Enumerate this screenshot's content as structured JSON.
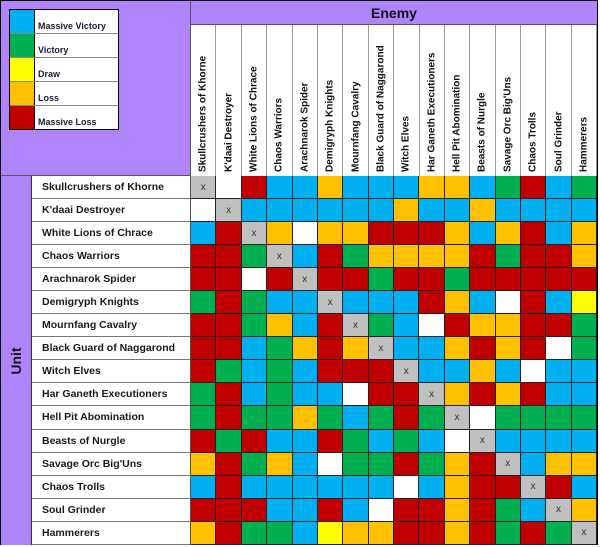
{
  "legend": [
    {
      "key": "MV",
      "label": "Massive Victory",
      "color": "#00b0f0"
    },
    {
      "key": "V",
      "label": "Victory",
      "color": "#00b050"
    },
    {
      "key": "D",
      "label": "Draw",
      "color": "#ffff00"
    },
    {
      "key": "L",
      "label": "Loss",
      "color": "#ffc000"
    },
    {
      "key": "ML",
      "label": "Massive Loss",
      "color": "#c00000"
    }
  ],
  "colors": {
    "MV": "#00b0f0",
    "V": "#00b050",
    "D": "#ffff00",
    "L": "#ffc000",
    "ML": "#c00000",
    "N": "#ffffff",
    "X": "#c0c0c0",
    "header": "#b183fc"
  },
  "header": {
    "enemy_label": "Enemy",
    "unit_label": "Unit"
  },
  "chart_data": {
    "type": "heatmap",
    "title": "",
    "xlabel": "Enemy",
    "ylabel": "Unit",
    "legend_position": "top-left",
    "cell_codes": {
      "MV": "Massive Victory",
      "V": "Victory",
      "D": "Draw",
      "L": "Loss",
      "ML": "Massive Loss",
      "N": "No data (blank)",
      "X": "Self (x)"
    },
    "columns": [
      "Skullcrushers of Khorne",
      "K'daai Destroyer",
      "White Lions of Chrace",
      "Chaos Warriors",
      "Arachnarok Spider",
      "Demigryph Knights",
      "Mournfang Cavalry",
      "Black Guard of Naggarond",
      "Witch Elves",
      "Har Ganeth Executioners",
      "Hell Pit Abomination",
      "Beasts of Nurgle",
      "Savage Orc Big'Uns",
      "Chaos Trolls",
      "Soul Grinder",
      "Hammerers"
    ],
    "rows": [
      "Skullcrushers of Khorne",
      "K'daai Destroyer",
      "White Lions of Chrace",
      "Chaos Warriors",
      "Arachnarok Spider",
      "Demigryph Knights",
      "Mournfang Cavalry",
      "Black Guard of Naggarond",
      "Witch Elves",
      "Har Ganeth Executioners",
      "Hell Pit Abomination",
      "Beasts of Nurgle",
      "Savage Orc Big'Uns",
      "Chaos Trolls",
      "Soul Grinder",
      "Hammerers"
    ],
    "values": [
      [
        "X",
        "N",
        "ML",
        "MV",
        "MV",
        "L",
        "MV",
        "MV",
        "MV",
        "L",
        "L",
        "MV",
        "V",
        "ML",
        "MV",
        "V"
      ],
      [
        "N",
        "X",
        "MV",
        "MV",
        "MV",
        "MV",
        "MV",
        "MV",
        "L",
        "MV",
        "MV",
        "L",
        "MV",
        "MV",
        "MV",
        "MV"
      ],
      [
        "MV",
        "ML",
        "X",
        "L",
        "N",
        "L",
        "L",
        "ML",
        "ML",
        "ML",
        "L",
        "MV",
        "L",
        "ML",
        "MV",
        "L"
      ],
      [
        "ML",
        "ML",
        "V",
        "X",
        "MV",
        "ML",
        "V",
        "L",
        "L",
        "L",
        "L",
        "ML",
        "V",
        "ML",
        "ML",
        "L"
      ],
      [
        "ML",
        "ML",
        "N",
        "ML",
        "X",
        "ML",
        "ML",
        "V",
        "ML",
        "ML",
        "V",
        "ML",
        "ML",
        "ML",
        "ML",
        "ML"
      ],
      [
        "V",
        "ML",
        "V",
        "MV",
        "MV",
        "X",
        "MV",
        "MV",
        "MV",
        "ML",
        "L",
        "MV",
        "N",
        "ML",
        "MV",
        "D"
      ],
      [
        "ML",
        "ML",
        "V",
        "L",
        "MV",
        "ML",
        "X",
        "V",
        "MV",
        "N",
        "ML",
        "L",
        "L",
        "ML",
        "ML",
        "V"
      ],
      [
        "ML",
        "ML",
        "MV",
        "V",
        "L",
        "ML",
        "L",
        "X",
        "MV",
        "MV",
        "L",
        "ML",
        "L",
        "ML",
        "N",
        "V"
      ],
      [
        "ML",
        "V",
        "MV",
        "V",
        "MV",
        "ML",
        "ML",
        "ML",
        "X",
        "MV",
        "MV",
        "L",
        "MV",
        "N",
        "MV",
        "MV"
      ],
      [
        "V",
        "ML",
        "MV",
        "V",
        "MV",
        "MV",
        "N",
        "ML",
        "ML",
        "X",
        "L",
        "ML",
        "L",
        "ML",
        "MV",
        "MV"
      ],
      [
        "V",
        "ML",
        "V",
        "V",
        "L",
        "V",
        "MV",
        "V",
        "ML",
        "V",
        "X",
        "N",
        "V",
        "V",
        "V",
        "V"
      ],
      [
        "ML",
        "V",
        "ML",
        "MV",
        "MV",
        "ML",
        "V",
        "MV",
        "V",
        "MV",
        "N",
        "X",
        "MV",
        "MV",
        "MV",
        "MV"
      ],
      [
        "L",
        "ML",
        "V",
        "L",
        "MV",
        "N",
        "V",
        "V",
        "ML",
        "V",
        "L",
        "ML",
        "X",
        "MV",
        "L",
        "L"
      ],
      [
        "MV",
        "ML",
        "MV",
        "MV",
        "MV",
        "MV",
        "MV",
        "MV",
        "N",
        "MV",
        "L",
        "ML",
        "ML",
        "X",
        "ML",
        "MV"
      ],
      [
        "ML",
        "ML",
        "ML",
        "MV",
        "MV",
        "ML",
        "MV",
        "N",
        "ML",
        "ML",
        "L",
        "ML",
        "V",
        "MV",
        "X",
        "L"
      ],
      [
        "L",
        "ML",
        "V",
        "V",
        "MV",
        "D",
        "L",
        "L",
        "ML",
        "ML",
        "L",
        "ML",
        "V",
        "ML",
        "V",
        "X"
      ]
    ],
    "self_marker": "x"
  }
}
